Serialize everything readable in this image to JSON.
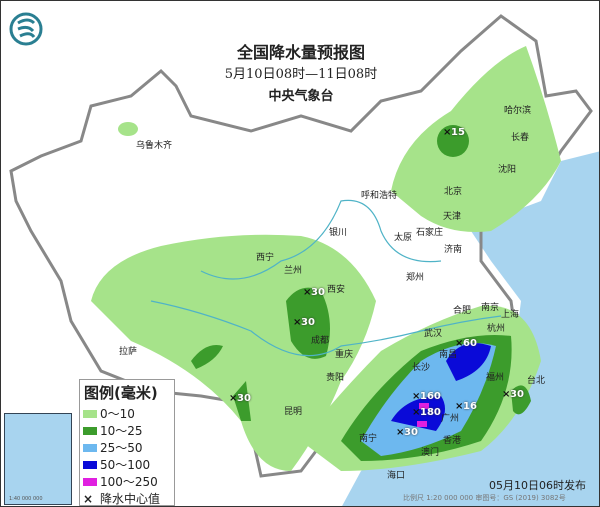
{
  "title": "全国降水量预报图",
  "period": "5月10日08时—11日08时",
  "agency": "中央气象台",
  "issued": "05月10日06时发布",
  "scale": "比例尺 1:20 000 000    审图号：GS (2019) 3082号",
  "inset_scale": "1:40 000 000",
  "legend": {
    "title": "图例(毫米)",
    "items": [
      {
        "label": "0～10",
        "color": "#a6e38a"
      },
      {
        "label": "10～25",
        "color": "#3c9c2c"
      },
      {
        "label": "25～50",
        "color": "#6db8ef"
      },
      {
        "label": "50～100",
        "color": "#0a0ad8"
      },
      {
        "label": "100～250",
        "color": "#e020e0"
      },
      {
        "label": "降水中心值",
        "icon": "cross-icon"
      }
    ]
  },
  "cities": [
    "乌鲁木齐",
    "哈尔滨",
    "长春",
    "沈阳",
    "呼和浩特",
    "北京",
    "天津",
    "太原",
    "石家庄",
    "银川",
    "济南",
    "西宁",
    "兰州",
    "郑州",
    "西安",
    "南京",
    "合肥",
    "上海",
    "武汉",
    "杭州",
    "成都",
    "拉萨",
    "重庆",
    "长沙",
    "南昌",
    "贵阳",
    "福州",
    "台北",
    "昆明",
    "广州",
    "南宁",
    "香港",
    "澳门",
    "海口"
  ],
  "centers": [
    "60",
    "160",
    "180",
    "30",
    "16",
    "30",
    "15",
    "30",
    "30",
    "30"
  ]
}
